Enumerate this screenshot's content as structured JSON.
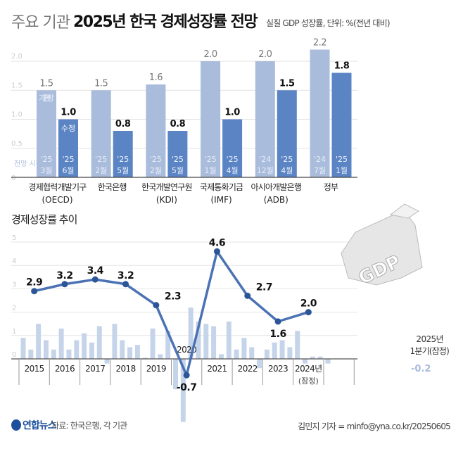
{
  "header": {
    "title_light": "주요 기관",
    "title_bold": "2025년 한국 경제성장률 전망",
    "unit_note": "실질 GDP 성장률, 단위: %(전년 대비)"
  },
  "footer": {
    "logo": "연합뉴스",
    "source": "자료: 한국은행, 각 기관",
    "credit": "김민지 기자 = minfo@yna.co.kr/20250605"
  },
  "chart_data": [
    {
      "type": "bar",
      "title": "주요 기관 2025년 한국 경제성장률 전망",
      "ylim": [
        0,
        2.2
      ],
      "yticks": [
        "0",
        "0.5",
        "1.0",
        "1.5",
        "2.0"
      ],
      "ytick_values": [
        0,
        0.5,
        1.0,
        1.5,
        2.0
      ],
      "legend_labels": {
        "previous": "기존 전망",
        "revised": "수정",
        "date_axis": "전망 시점"
      },
      "colors": {
        "previous": "#aabcdc",
        "revised": "#5b84c4"
      },
      "categories": [
        {
          "name": "경제협력개발기구",
          "abbr": "(OECD)",
          "prev": 1.5,
          "prev_label": "1.5",
          "prev_date": [
            "'25",
            "3월"
          ],
          "rev": 1.0,
          "rev_label": "1.0",
          "rev_date": [
            "'25",
            "6월"
          ]
        },
        {
          "name": "한국은행",
          "abbr": "",
          "prev": 1.5,
          "prev_label": "1.5",
          "prev_date": [
            "'25",
            "2월"
          ],
          "rev": 0.8,
          "rev_label": "0.8",
          "rev_date": [
            "'25",
            "5월"
          ]
        },
        {
          "name": "한국개발연구원",
          "abbr": "(KDI)",
          "prev": 1.6,
          "prev_label": "1.6",
          "prev_date": [
            "'25",
            "2월"
          ],
          "rev": 0.8,
          "rev_label": "0.8",
          "rev_date": [
            "'25",
            "5월"
          ]
        },
        {
          "name": "국제통화기금",
          "abbr": "(IMF)",
          "prev": 2.0,
          "prev_label": "2.0",
          "prev_date": [
            "'25",
            "1월"
          ],
          "rev": 1.0,
          "rev_label": "1.0",
          "rev_date": [
            "'25",
            "4월"
          ]
        },
        {
          "name": "아시아개발은행",
          "abbr": "(ADB)",
          "prev": 2.0,
          "prev_label": "2.0",
          "prev_date": [
            "'24",
            "12월"
          ],
          "rev": 1.5,
          "rev_label": "1.5",
          "rev_date": [
            "'25",
            "4월"
          ]
        },
        {
          "name": "정부",
          "abbr": "",
          "prev": 2.2,
          "prev_label": "2.2",
          "prev_date": [
            "'24",
            "7월"
          ],
          "rev": 1.8,
          "rev_label": "1.8",
          "rev_date": [
            "'25",
            "1월"
          ]
        }
      ]
    },
    {
      "type": "line",
      "title": "경제성장률 추이",
      "ylim": [
        -2.8,
        5
      ],
      "yticks": [
        "0",
        "1",
        "2",
        "3",
        "4",
        "5"
      ],
      "ytick_values": [
        0,
        1,
        2,
        3,
        4,
        5
      ],
      "years": [
        "2015",
        "2016",
        "2017",
        "2018",
        "2019",
        "2020",
        "2021",
        "2022",
        "2023",
        "2024년"
      ],
      "year_note_2024": "(잠정)",
      "annual": [
        2.9,
        3.2,
        3.4,
        3.2,
        2.3,
        -0.7,
        4.6,
        2.7,
        1.6,
        2.0
      ],
      "annual_labels": [
        "2.9",
        "3.2",
        "3.4",
        "3.2",
        "2.3",
        "-0.7",
        "4.6",
        "2.7",
        "1.6",
        "2.0"
      ],
      "quarterly": [
        0.9,
        0.4,
        1.5,
        0.8,
        0.4,
        1.3,
        0.4,
        0.8,
        1.1,
        0.7,
        1.4,
        -0.2,
        1.5,
        0.8,
        0.5,
        0.6,
        0.05,
        1.3,
        0.2,
        1.2,
        -1.3,
        -2.7,
        2.2,
        1.6,
        1.5,
        1.4,
        0.2,
        1.6,
        0.4,
        0.9,
        0.5,
        -0.4,
        0.4,
        0.7,
        0.8,
        0.5,
        1.2,
        -0.2,
        0.1,
        0.1
      ],
      "q2025": {
        "value": -0.2,
        "label": "-0.2",
        "note_line1": "2025년",
        "note_line2": "1분기(잠정)"
      },
      "graphic_text": "GDP",
      "colors": {
        "line": "#4a72b4",
        "dot": "#2b5597",
        "quarterly": "#c6d4ea"
      }
    }
  ]
}
